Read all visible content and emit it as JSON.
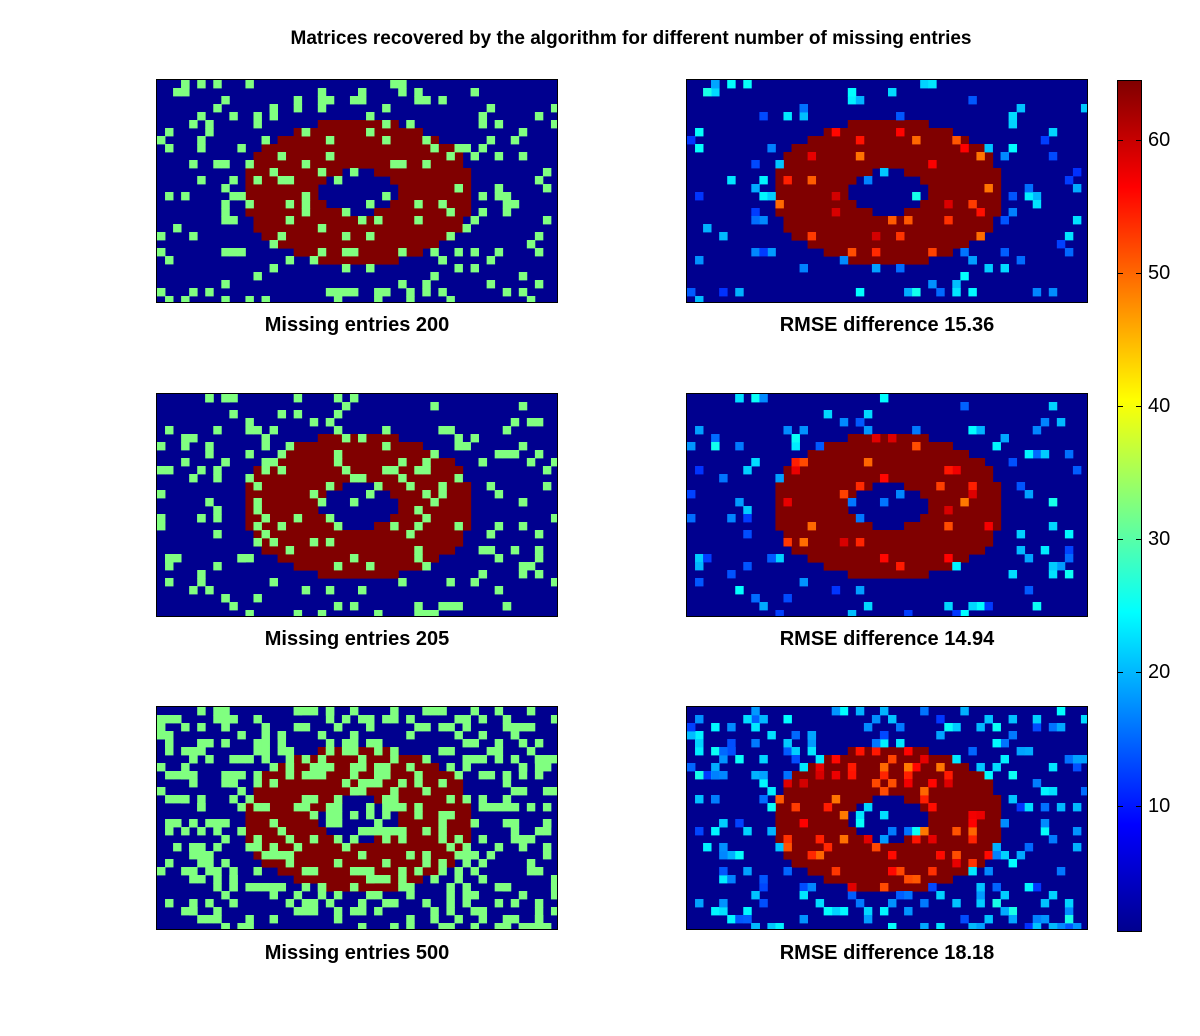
{
  "title": "Matrices recovered by the algorithm for different number of missing entries",
  "chart_data": [
    {
      "type": "heatmap",
      "caption": "Missing entries 200",
      "missing_entries": 200,
      "kind": "missing"
    },
    {
      "type": "heatmap",
      "caption": "RMSE difference 15.36",
      "rmse": 15.36,
      "kind": "recovered"
    },
    {
      "type": "heatmap",
      "caption": "Missing entries 205",
      "missing_entries": 205,
      "kind": "missing"
    },
    {
      "type": "heatmap",
      "caption": "RMSE difference 14.94",
      "rmse": 14.94,
      "kind": "recovered"
    },
    {
      "type": "heatmap",
      "caption": "Missing entries 500",
      "missing_entries": 500,
      "kind": "missing"
    },
    {
      "type": "heatmap",
      "caption": "RMSE difference 18.18",
      "rmse": 18.18,
      "kind": "recovered"
    }
  ],
  "colorbar": {
    "colormap": "jet",
    "range": [
      1,
      64
    ],
    "ticks": [
      "10",
      "20",
      "30",
      "40",
      "50",
      "60"
    ]
  },
  "colors": {
    "background_low": "#00008f",
    "ring_high": "#800000",
    "missing_marker": "#80ff80"
  }
}
